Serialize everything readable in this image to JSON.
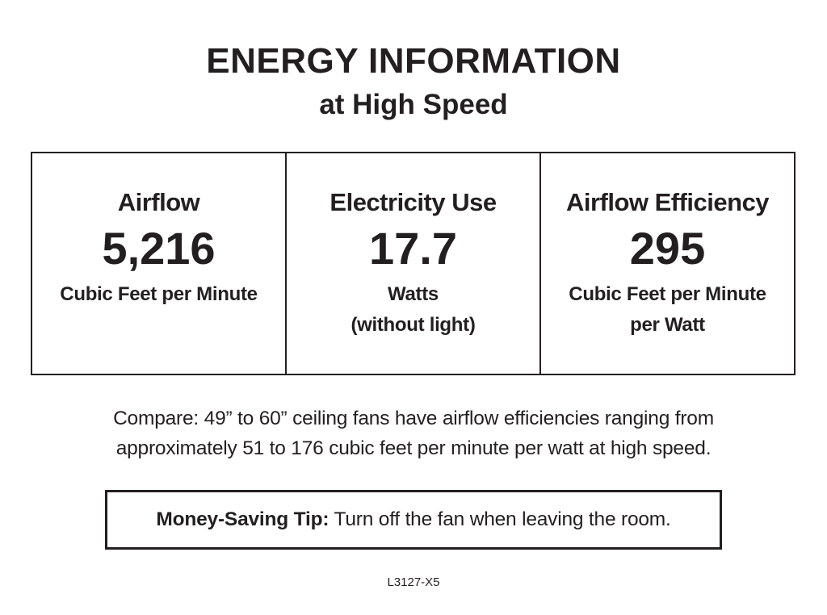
{
  "header": {
    "title": "ENERGY INFORMATION",
    "subtitle": "at High Speed"
  },
  "stats": [
    {
      "label": "Airflow",
      "value": "5,216",
      "unit_lines": [
        "Cubic Feet per Minute"
      ]
    },
    {
      "label": "Electricity Use",
      "value": "17.7",
      "unit_lines": [
        "Watts",
        "(without light)"
      ]
    },
    {
      "label": "Airflow Efficiency",
      "value": "295",
      "unit_lines": [
        "Cubic Feet per Minute",
        "per Watt"
      ]
    }
  ],
  "compare": {
    "lines": [
      "Compare: 49” to 60” ceiling fans have airflow efficiencies ranging from",
      "approximately 51 to 176 cubic feet per minute per watt at high speed."
    ]
  },
  "tip": {
    "label": "Money-Saving Tip:",
    "text": " Turn off the fan when leaving the room."
  },
  "footer": {
    "code": "L3127-X5"
  }
}
